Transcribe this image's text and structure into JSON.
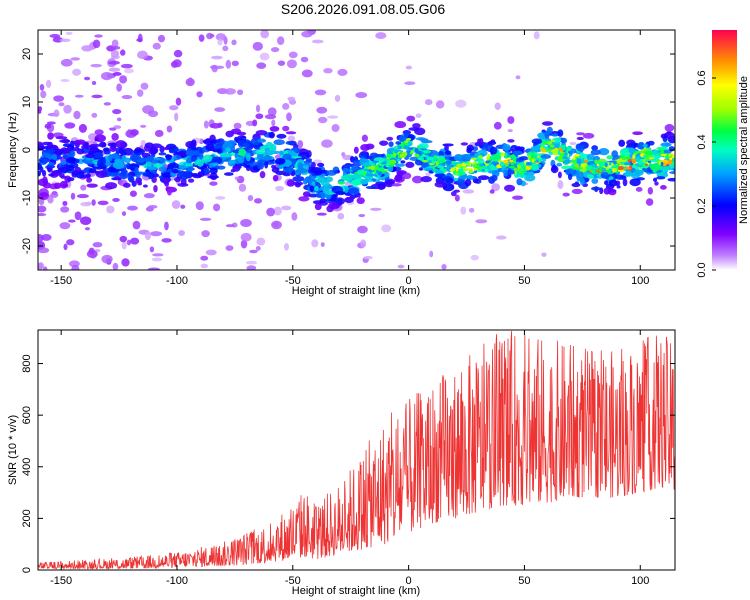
{
  "figure": {
    "title": "S206.2026.091.08.05.G06"
  },
  "chart_data": [
    {
      "type": "heatmap",
      "xlabel": "Height of straight line (km)",
      "ylabel": "Frequency (Hz)",
      "xlim": [
        -160,
        115
      ],
      "ylim": [
        -25,
        25
      ],
      "xticks": [
        -150,
        -100,
        -50,
        0,
        50,
        100
      ],
      "yticks": [
        -20,
        -10,
        0,
        10,
        20
      ],
      "colorbar": {
        "label": "Normalized spectral amplitude",
        "range": [
          0.0,
          0.75
        ],
        "ticks": [
          0.0,
          0.2,
          0.4,
          0.6
        ],
        "tick_labels": [
          "0.0",
          "0.2",
          "0.4",
          "0.6"
        ],
        "colormap": [
          "#ffffff",
          "#a040ff",
          "#6000ff",
          "#0000ff",
          "#00c0ff",
          "#00ff80",
          "#80ff00",
          "#ffff00",
          "#ff8000",
          "#ff0000"
        ]
      },
      "ridge": {
        "description_points_x": [
          -150,
          -120,
          -100,
          -80,
          -60,
          -50,
          -40,
          -30,
          -20,
          -10,
          0,
          10,
          20,
          30,
          40,
          50,
          60,
          70,
          80,
          90,
          100,
          110
        ],
        "center_frequency": [
          -2,
          -3,
          -3,
          -1,
          0,
          -2,
          -7,
          -7,
          -5,
          -3,
          1,
          -2,
          -4,
          -3,
          -2,
          -4,
          1,
          -2,
          -4,
          -3,
          -2,
          -2
        ]
      }
    },
    {
      "type": "line",
      "xlabel": "Height of straight line (km)",
      "ylabel": "SNR (10 * v/v)",
      "xlim": [
        -160,
        115
      ],
      "ylim": [
        0,
        930
      ],
      "xticks": [
        -150,
        -100,
        -50,
        0,
        50,
        100
      ],
      "yticks": [
        0,
        200,
        400,
        600,
        800
      ],
      "series": [
        {
          "name": "SNR",
          "color": "#ee3333",
          "envelope_x": [
            -160,
            -140,
            -120,
            -100,
            -80,
            -70,
            -60,
            -50,
            -45,
            -40,
            -30,
            -20,
            -10,
            0,
            10,
            20,
            30,
            40,
            50,
            60,
            70,
            80,
            90,
            100,
            110,
            115
          ],
          "envelope_min": [
            5,
            5,
            5,
            10,
            15,
            20,
            30,
            40,
            50,
            40,
            60,
            80,
            100,
            140,
            180,
            200,
            220,
            250,
            250,
            260,
            280,
            280,
            280,
            300,
            320,
            300
          ],
          "envelope_max": [
            30,
            40,
            50,
            70,
            110,
            150,
            190,
            260,
            320,
            260,
            340,
            460,
            600,
            660,
            740,
            800,
            860,
            930,
            930,
            900,
            880,
            860,
            850,
            900,
            930,
            860
          ]
        }
      ]
    }
  ]
}
